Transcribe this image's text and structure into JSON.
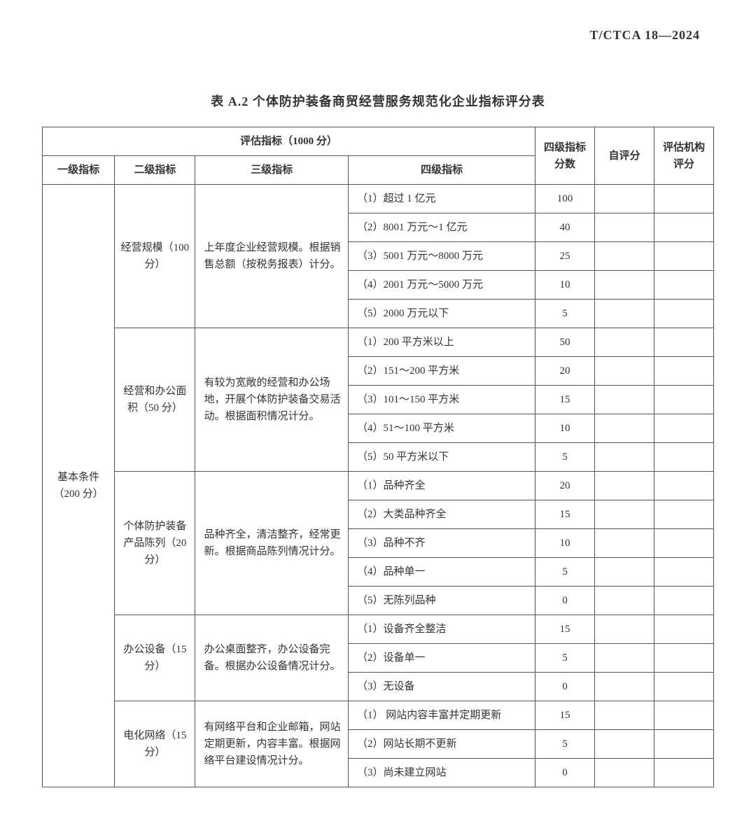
{
  "doc_code": "T/CTCA 18—2024",
  "table_title": "表 A.2 个体防护装备商贸经营服务规范化企业指标评分表",
  "header": {
    "eval_index": "评估指标（1000 分）",
    "l1": "一级指标",
    "l2": "二级指标",
    "l3": "三级指标",
    "l4": "四级指标",
    "l4_score": "四级指标分数",
    "self_score": "自评分",
    "agency_score": "评估机构评分"
  },
  "level1": {
    "name": "基本条件（200 分）"
  },
  "groups": [
    {
      "l2": "经营规模（100 分）",
      "l3": "上年度企业经营规模。根据销售总额（按税务报表）计分。",
      "rows": [
        {
          "l4": "（1）超过 1 亿元",
          "score": "100"
        },
        {
          "l4": "（2）8001 万元～1 亿元",
          "score": "40"
        },
        {
          "l4": "（3）5001 万元～8000 万元",
          "score": "25"
        },
        {
          "l4": "（4）2001 万元～5000 万元",
          "score": "10"
        },
        {
          "l4": "（5）2000 万元以下",
          "score": "5"
        }
      ]
    },
    {
      "l2": "经营和办公面积（50 分）",
      "l3": "有较为宽敞的经营和办公场地，开展个体防护装备交易活动。根据面积情况计分。",
      "rows": [
        {
          "l4": "（1）200 平方米以上",
          "score": "50"
        },
        {
          "l4": "（2）151～200 平方米",
          "score": "20"
        },
        {
          "l4": "（3）101～150 平方米",
          "score": "15"
        },
        {
          "l4": "（4）51～100 平方米",
          "score": "10"
        },
        {
          "l4": "（5）50 平方米以下",
          "score": "5"
        }
      ]
    },
    {
      "l2": "个体防护装备产品陈列（20 分）",
      "l3": "品种齐全，清洁整齐，经常更新。根据商品陈列情况计分。",
      "rows": [
        {
          "l4": "（1）品种齐全",
          "score": "20"
        },
        {
          "l4": "（2）大类品种齐全",
          "score": "15"
        },
        {
          "l4": "（3）品种不齐",
          "score": "10"
        },
        {
          "l4": "（4）品种单一",
          "score": "5"
        },
        {
          "l4": "（5）无陈列品种",
          "score": "0"
        }
      ]
    },
    {
      "l2": "办公设备（15 分）",
      "l3": "办公桌面整齐，办公设备完备。根据办公设备情况计分。",
      "rows": [
        {
          "l4": "（1）设备齐全整洁",
          "score": "15"
        },
        {
          "l4": "（2）设备单一",
          "score": "5"
        },
        {
          "l4": "（3）无设备",
          "score": "0"
        }
      ]
    },
    {
      "l2": "电化网络（15 分）",
      "l3": "有网络平台和企业邮箱，网站定期更新，内容丰富。根据网络平台建设情况计分。",
      "rows": [
        {
          "l4": "（1） 网站内容丰富并定期更新",
          "score": "15"
        },
        {
          "l4": "（2）网站长期不更新",
          "score": "5"
        },
        {
          "l4": "（3）尚未建立网站",
          "score": "0"
        }
      ]
    }
  ],
  "style": {
    "page_bg": "#ffffff",
    "border_color": "#555555",
    "text_color": "#333333",
    "title_fontsize_pt": 14,
    "body_fontsize_pt": 11
  }
}
